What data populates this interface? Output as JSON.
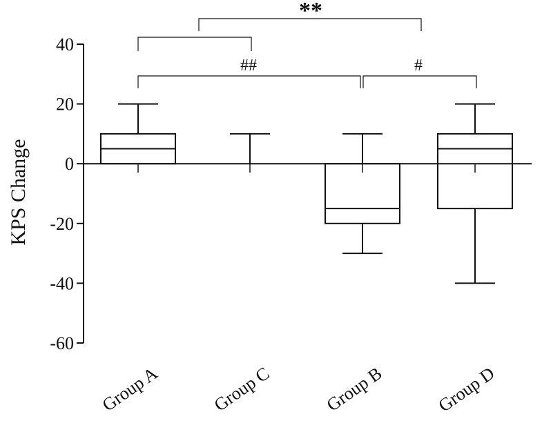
{
  "chart_data": {
    "type": "box",
    "ylabel": "KPS Change",
    "ylim": [
      -60,
      40
    ],
    "yticks": [
      "40",
      "20",
      "0",
      "-20",
      "-40",
      "-60"
    ],
    "ytick_values": [
      40,
      20,
      0,
      -20,
      -40,
      -60
    ],
    "categories": [
      "Group A",
      "Group C",
      "Group B",
      "Group D"
    ],
    "boxes": [
      {
        "group": "Group A",
        "whisker_low": 0,
        "q1": 0,
        "median": 5,
        "q3": 10,
        "whisker_high": 20
      },
      {
        "group": "Group C",
        "whisker_low": 0,
        "q1": 0,
        "median": 0,
        "q3": 0,
        "whisker_high": 10
      },
      {
        "group": "Group B",
        "whisker_low": -30,
        "q1": -20,
        "median": -15,
        "q3": 0,
        "whisker_high": 10
      },
      {
        "group": "Group D",
        "whisker_low": -40,
        "q1": -15,
        "median": 5,
        "q3": 10,
        "whisker_high": 20
      }
    ],
    "annotations": [
      {
        "label": "**",
        "from": "Group A vs Group C",
        "to": "Group B vs Group D"
      },
      {
        "label": "##",
        "from": "Group A",
        "to": "Group B"
      },
      {
        "label": "#",
        "from": "Group B",
        "to": "Group D"
      }
    ]
  }
}
